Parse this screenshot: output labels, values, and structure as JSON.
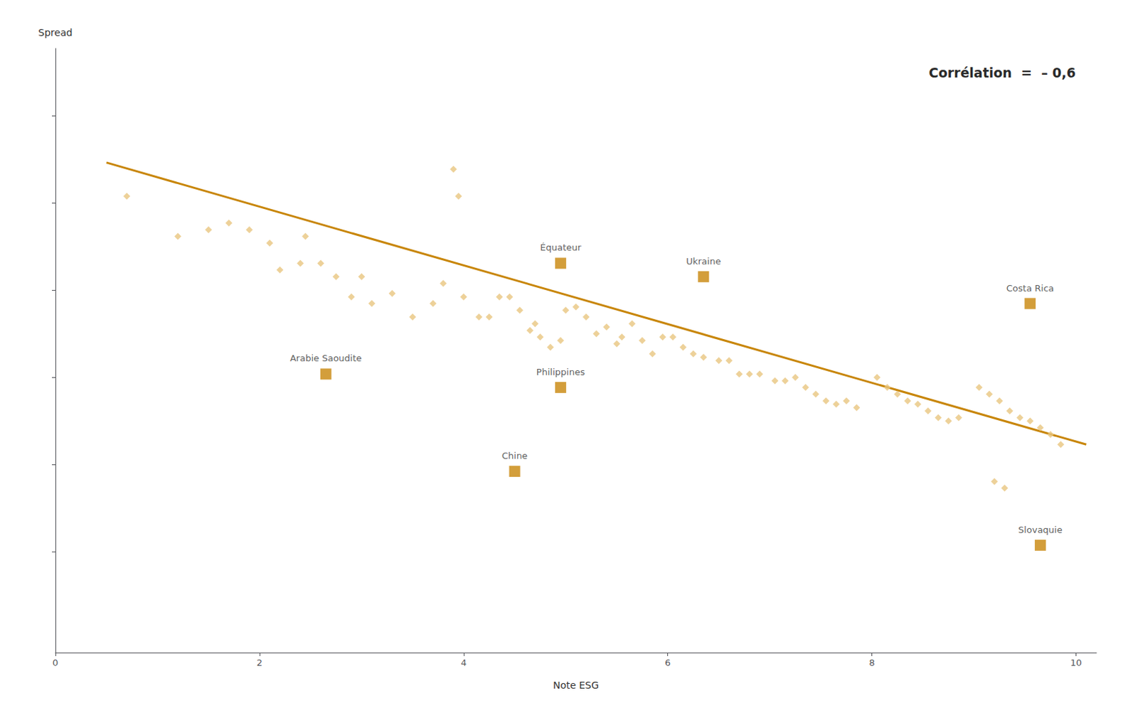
{
  "chart_data": {
    "type": "scatter",
    "xlabel": "Note ESG",
    "ylabel": "Spread",
    "annotation": "Corrélation  =  – 0,6",
    "xlim": [
      0,
      10.2
    ],
    "ylim": [
      0,
      9
    ],
    "xticks": [
      0,
      2,
      4,
      6,
      8,
      10
    ],
    "yticks": [
      1.5,
      2.8,
      4.1,
      5.4,
      6.7,
      8.0
    ],
    "tick_labels": "x",
    "grid": false,
    "series": [
      {
        "type": "scatter",
        "marker": "diamond",
        "color": "#e8c580",
        "x": [
          0.7,
          1.2,
          1.5,
          1.7,
          1.9,
          2.1,
          2.2,
          2.4,
          2.45,
          2.6,
          2.75,
          2.9,
          3.0,
          3.1,
          3.3,
          3.5,
          3.7,
          3.8,
          3.9,
          3.95,
          4.0,
          4.15,
          4.25,
          4.35,
          4.45,
          4.55,
          4.65,
          4.7,
          4.75,
          4.85,
          4.95,
          5.0,
          5.1,
          5.2,
          5.3,
          5.4,
          5.5,
          5.55,
          5.65,
          5.75,
          5.85,
          5.95,
          6.05,
          6.15,
          6.25,
          6.35,
          6.5,
          6.6,
          6.7,
          6.8,
          6.9,
          7.05,
          7.15,
          7.25,
          7.35,
          7.45,
          7.55,
          7.65,
          7.75,
          7.85,
          8.05,
          8.15,
          8.25,
          8.35,
          8.45,
          8.55,
          8.65,
          8.75,
          8.85,
          9.05,
          9.15,
          9.25,
          9.35,
          9.45,
          9.55,
          9.65,
          9.75,
          9.85,
          9.2,
          9.3
        ],
        "values": [
          6.8,
          6.2,
          6.3,
          6.4,
          6.3,
          6.1,
          5.7,
          5.8,
          6.2,
          5.8,
          5.6,
          5.3,
          5.6,
          5.2,
          5.35,
          5.0,
          5.2,
          5.5,
          7.2,
          6.8,
          5.3,
          5.0,
          5.0,
          5.3,
          5.3,
          5.1,
          4.8,
          4.9,
          4.7,
          4.55,
          4.65,
          5.1,
          5.15,
          5.0,
          4.75,
          4.85,
          4.6,
          4.7,
          4.9,
          4.65,
          4.45,
          4.7,
          4.7,
          4.55,
          4.45,
          4.4,
          4.35,
          4.35,
          4.15,
          4.15,
          4.15,
          4.05,
          4.05,
          4.1,
          3.95,
          3.85,
          3.75,
          3.7,
          3.75,
          3.65,
          4.1,
          3.95,
          3.85,
          3.75,
          3.7,
          3.6,
          3.5,
          3.45,
          3.5,
          3.95,
          3.85,
          3.75,
          3.6,
          3.5,
          3.45,
          3.35,
          3.25,
          3.1,
          2.55,
          2.45
        ]
      },
      {
        "type": "scatter",
        "marker": "square",
        "color": "#c8860a",
        "x": [
          4.95,
          6.35,
          9.55,
          2.65,
          4.95,
          4.5,
          9.65
        ],
        "values": [
          5.8,
          5.6,
          5.2,
          4.15,
          3.95,
          2.7,
          1.6
        ],
        "labels": [
          "Équateur",
          "Ukraine",
          "Costa Rica",
          "Arabie Saoudite",
          "Philippines",
          "Chine",
          "Slovaquie"
        ]
      },
      {
        "type": "line",
        "color": "#c8860a",
        "x": [
          0.5,
          10.1
        ],
        "values": [
          7.3,
          3.1
        ]
      }
    ]
  }
}
